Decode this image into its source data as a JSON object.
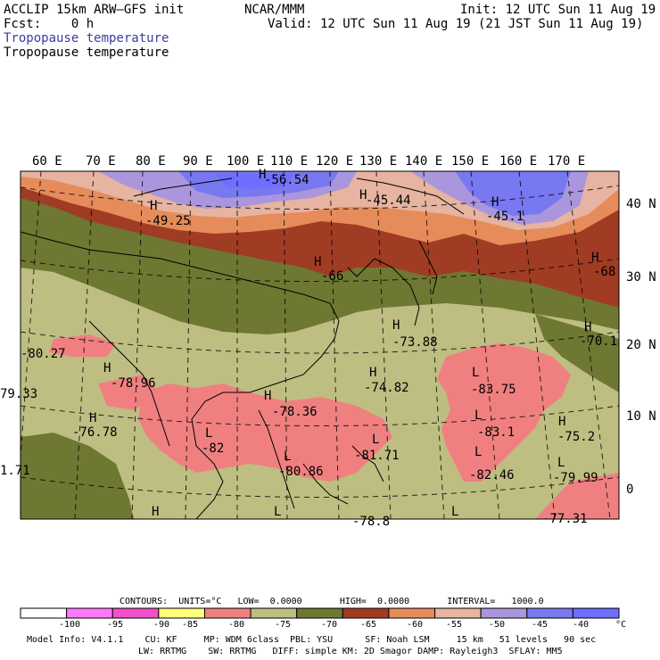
{
  "header": {
    "model": "ACCLIP 15km ARW–GFS init",
    "org": "NCAR/MMM",
    "init": "Init: 12 UTC Sun 11 Aug 19",
    "fcst": "Fcst:    0 h",
    "valid": "Valid: 12 UTC Sun 11 Aug 19 (21 JST Sun 11 Aug 19)",
    "field1": "Tropopause temperature",
    "field2": "Tropopause temperature"
  },
  "map": {
    "lon_labels": [
      "60 E",
      "70 E",
      "80 E",
      "90 E",
      "100 E",
      "110 E",
      "120 E",
      "130 E",
      "140 E",
      "150 E",
      "160 E",
      "170 E"
    ],
    "lat_labels": [
      "40 N",
      "30 N",
      "20 N",
      "10 N",
      "0"
    ],
    "annotations": [
      {
        "t": "-56.54"
      },
      {
        "t": "-45.44"
      },
      {
        "t": "-49.25"
      },
      {
        "t": "-45.1"
      },
      {
        "t": "-66"
      },
      {
        "t": "-68"
      },
      {
        "t": "-70.1"
      },
      {
        "t": "-73.88"
      },
      {
        "t": "-80.27"
      },
      {
        "t": "-78.96"
      },
      {
        "t": "-74.82"
      },
      {
        "t": "-83.75"
      },
      {
        "t": "79.33"
      },
      {
        "t": "-78.36"
      },
      {
        "t": "-76.78"
      },
      {
        "t": "-83.1"
      },
      {
        "t": "-75.2"
      },
      {
        "t": "-82"
      },
      {
        "t": "-81.71"
      },
      {
        "t": "-80.86"
      },
      {
        "t": "-82.46"
      },
      {
        "t": "-79.99"
      },
      {
        "t": "1.71"
      },
      {
        "t": "-77.31"
      },
      {
        "t": "-78.8"
      }
    ],
    "H_count": 14,
    "L_count": 9
  },
  "colorbar": {
    "contours": "CONTOURS:  UNITS=°C   LOW=  0.0000       HIGH=  0.0000       INTERVAL=   1000.0",
    "labels": [
      "-100",
      "-95",
      "-90",
      "-85",
      "-80",
      "-75",
      "-70",
      "-65",
      "-60",
      "-55",
      "-50",
      "-45",
      "-40",
      "°C"
    ],
    "colors": [
      "#ffffff",
      "#ff78ff",
      "#f050c8",
      "#ffff78",
      "#f08080",
      "#bebe82",
      "#6e7832",
      "#a03c23",
      "#e68c5a",
      "#e6b4a0",
      "#aa96dc",
      "#7878f0",
      "#6e6eff"
    ]
  },
  "footer": {
    "line1": "Model Info: V4.1.1    CU: KF     MP: WDM 6class  PBL: YSU      SF: Noah LSM     15 km   51 levels   90 sec",
    "line2": "LW: RRTMG    SW: RRTMG   DIFF: simple KM: 2D Smagor DAMP: Rayleigh3  SFLAY: MM5"
  }
}
